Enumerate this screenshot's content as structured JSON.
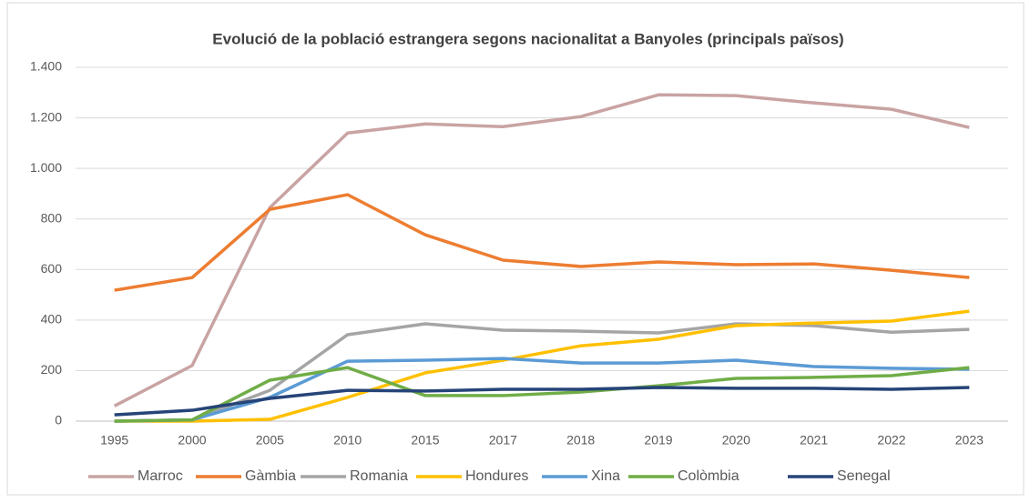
{
  "chart_data": {
    "type": "line",
    "title": "Evolució de la població estrangera segons nacionalitat a Banyoles (principals països)",
    "categories": [
      "1995",
      "2000",
      "2005",
      "2010",
      "2015",
      "2017",
      "2018",
      "2019",
      "2020",
      "2021",
      "2022",
      "2023"
    ],
    "series": [
      {
        "name": "Marroc",
        "color": "#c9a3a3",
        "values": [
          60,
          220,
          845,
          1140,
          1176,
          1165,
          1205,
          1291,
          1288,
          1259,
          1234,
          1162
        ]
      },
      {
        "name": "Gàmbia",
        "color": "#ed7d31",
        "values": [
          518,
          568,
          838,
          896,
          737,
          637,
          612,
          630,
          619,
          622,
          597,
          568
        ]
      },
      {
        "name": "Romania",
        "color": "#a5a5a5",
        "values": [
          0,
          5,
          122,
          342,
          385,
          360,
          356,
          349,
          385,
          378,
          352,
          363
        ]
      },
      {
        "name": "Hondures",
        "color": "#ffc000",
        "values": [
          0,
          0,
          7,
          94,
          191,
          241,
          298,
          324,
          378,
          388,
          396,
          435
        ]
      },
      {
        "name": "Xina",
        "color": "#5b9bd5",
        "values": [
          0,
          5,
          94,
          237,
          241,
          248,
          230,
          230,
          241,
          216,
          209,
          205
        ]
      },
      {
        "name": "Colòmbia",
        "color": "#70ad47",
        "values": [
          0,
          5,
          162,
          212,
          101,
          101,
          115,
          140,
          169,
          173,
          180,
          212
        ]
      },
      {
        "name": "Senegal",
        "color": "#264478",
        "values": [
          25,
          43,
          90,
          122,
          119,
          126,
          126,
          133,
          130,
          130,
          126,
          133
        ]
      }
    ],
    "ylim": [
      0,
      1400
    ],
    "yticks": [
      0,
      200,
      400,
      600,
      800,
      {
        "value": 1000,
        "label": "1.000"
      },
      {
        "value": 1200,
        "label": "1.200"
      },
      {
        "value": 1400,
        "label": "1.400"
      }
    ],
    "grid": true,
    "legend": "bottom"
  }
}
